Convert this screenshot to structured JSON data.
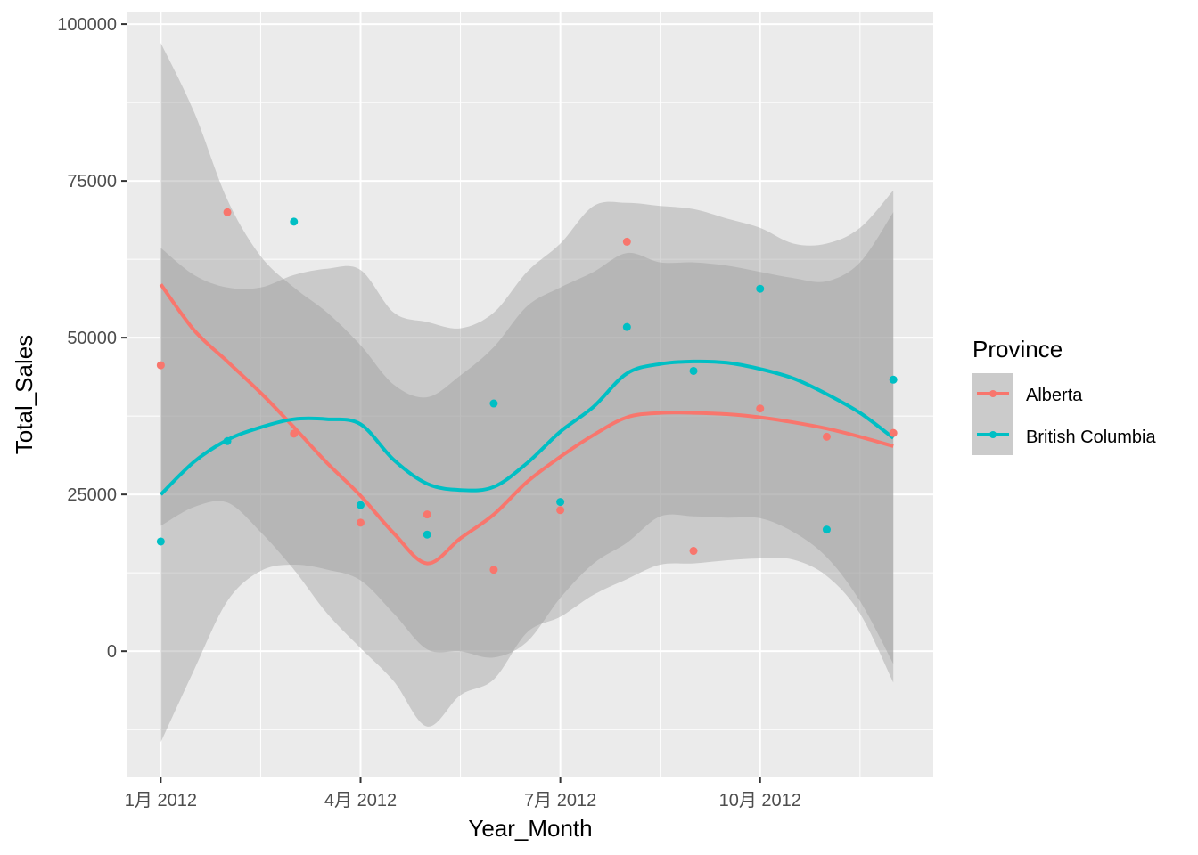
{
  "chart_data": {
    "type": "scatter",
    "title": "",
    "xlabel": "Year_Month",
    "ylabel": "Total_Sales",
    "x_tick_labels": [
      "1月 2012",
      "4月 2012",
      "7月 2012",
      "10月 2012"
    ],
    "x_ticks": [
      1,
      4,
      7,
      10
    ],
    "y_tick_labels": [
      "0",
      "25000",
      "50000",
      "75000",
      "100000"
    ],
    "y_ticks": [
      0,
      25000,
      50000,
      75000,
      100000
    ],
    "xlim": [
      0.5,
      12.6
    ],
    "ylim": [
      -20000,
      102000
    ],
    "months": [
      1,
      2,
      3,
      4,
      5,
      6,
      7,
      8,
      9,
      10,
      11,
      12
    ],
    "grid": true,
    "legend": {
      "title": "Province",
      "position": "right"
    },
    "series": [
      {
        "name": "Alberta",
        "color": "#F8766D",
        "points": [
          45600,
          70000,
          34700,
          20500,
          21800,
          13000,
          22500,
          65300,
          16000,
          38700,
          34200,
          34800
        ],
        "smooth": [
          [
            1,
            58500
          ],
          [
            1.5,
            51200
          ],
          [
            2,
            46200
          ],
          [
            2.5,
            41200
          ],
          [
            3,
            35700
          ],
          [
            3.5,
            30000
          ],
          [
            4,
            24800
          ],
          [
            4.5,
            18800
          ],
          [
            5,
            14000
          ],
          [
            5.5,
            18000
          ],
          [
            6,
            21800
          ],
          [
            6.5,
            27000
          ],
          [
            7,
            31000
          ],
          [
            7.5,
            34500
          ],
          [
            8,
            37300
          ],
          [
            8.5,
            38000
          ],
          [
            9,
            38000
          ],
          [
            9.5,
            37800
          ],
          [
            10,
            37300
          ],
          [
            10.5,
            36500
          ],
          [
            11,
            35500
          ],
          [
            11.5,
            34200
          ],
          [
            12,
            32700
          ]
        ],
        "ci_upper": [
          [
            1,
            97000
          ],
          [
            1.5,
            86000
          ],
          [
            2,
            72000
          ],
          [
            2.5,
            63000
          ],
          [
            3,
            58000
          ],
          [
            3.5,
            54000
          ],
          [
            4,
            48800
          ],
          [
            4.5,
            42500
          ],
          [
            5,
            40500
          ],
          [
            5.5,
            44000
          ],
          [
            6,
            48500
          ],
          [
            6.5,
            55000
          ],
          [
            7,
            58000
          ],
          [
            7.5,
            60500
          ],
          [
            8,
            63500
          ],
          [
            8.5,
            62000
          ],
          [
            9,
            62000
          ],
          [
            9.5,
            61500
          ],
          [
            10,
            60500
          ],
          [
            10.5,
            59500
          ],
          [
            11,
            59000
          ],
          [
            11.5,
            62000
          ],
          [
            12,
            70000
          ]
        ],
        "ci_lower": [
          [
            1,
            20000
          ],
          [
            1.5,
            23000
          ],
          [
            2,
            23700
          ],
          [
            2.5,
            19000
          ],
          [
            3,
            13000
          ],
          [
            3.5,
            6000
          ],
          [
            4,
            500
          ],
          [
            4.5,
            -4800
          ],
          [
            5,
            -12000
          ],
          [
            5.5,
            -7000
          ],
          [
            6,
            -4500
          ],
          [
            6.5,
            3000
          ],
          [
            7,
            5500
          ],
          [
            7.5,
            9000
          ],
          [
            8,
            11500
          ],
          [
            8.5,
            13800
          ],
          [
            9,
            14000
          ],
          [
            9.5,
            14500
          ],
          [
            10,
            14800
          ],
          [
            10.5,
            14600
          ],
          [
            11,
            12000
          ],
          [
            11.5,
            6000
          ],
          [
            12,
            -5000
          ]
        ]
      },
      {
        "name": "British Columbia",
        "color": "#00BFC4",
        "points": [
          17500,
          33500,
          68500,
          23300,
          18600,
          39500,
          23800,
          51700,
          44700,
          57800,
          19400,
          43300
        ],
        "smooth": [
          [
            1,
            25000
          ],
          [
            1.5,
            30200
          ],
          [
            2,
            33700
          ],
          [
            2.5,
            35700
          ],
          [
            3,
            37000
          ],
          [
            3.5,
            37000
          ],
          [
            4,
            36200
          ],
          [
            4.5,
            30500
          ],
          [
            5,
            26700
          ],
          [
            5.5,
            25700
          ],
          [
            6,
            26200
          ],
          [
            6.5,
            30000
          ],
          [
            7,
            35000
          ],
          [
            7.5,
            39000
          ],
          [
            8,
            44300
          ],
          [
            8.5,
            45800
          ],
          [
            9,
            46200
          ],
          [
            9.5,
            46000
          ],
          [
            10,
            45000
          ],
          [
            10.5,
            43500
          ],
          [
            11,
            41000
          ],
          [
            11.5,
            38000
          ],
          [
            12,
            34000
          ]
        ],
        "ci_upper": [
          [
            1,
            64300
          ],
          [
            1.5,
            60000
          ],
          [
            2,
            58000
          ],
          [
            2.5,
            58000
          ],
          [
            3,
            60000
          ],
          [
            3.5,
            61000
          ],
          [
            4,
            60800
          ],
          [
            4.5,
            54000
          ],
          [
            5,
            52500
          ],
          [
            5.5,
            51500
          ],
          [
            6,
            54000
          ],
          [
            6.5,
            60500
          ],
          [
            7,
            65000
          ],
          [
            7.5,
            71000
          ],
          [
            8,
            71500
          ],
          [
            8.5,
            71000
          ],
          [
            9,
            70500
          ],
          [
            9.5,
            69000
          ],
          [
            10,
            67500
          ],
          [
            10.5,
            65000
          ],
          [
            11,
            65000
          ],
          [
            11.5,
            67500
          ],
          [
            12,
            73500
          ]
        ],
        "ci_lower": [
          [
            1,
            -14500
          ],
          [
            1.5,
            -3000
          ],
          [
            2,
            8000
          ],
          [
            2.5,
            12800
          ],
          [
            3,
            13800
          ],
          [
            3.5,
            13000
          ],
          [
            4,
            11300
          ],
          [
            4.5,
            6000
          ],
          [
            5,
            300
          ],
          [
            5.5,
            0
          ],
          [
            6,
            -1000
          ],
          [
            6.5,
            1500
          ],
          [
            7,
            8500
          ],
          [
            7.5,
            14000
          ],
          [
            8,
            17300
          ],
          [
            8.5,
            21500
          ],
          [
            9,
            21500
          ],
          [
            9.5,
            21300
          ],
          [
            10,
            21200
          ],
          [
            10.5,
            19000
          ],
          [
            11,
            15000
          ],
          [
            11.5,
            8000
          ],
          [
            12,
            -2000
          ]
        ]
      }
    ]
  }
}
